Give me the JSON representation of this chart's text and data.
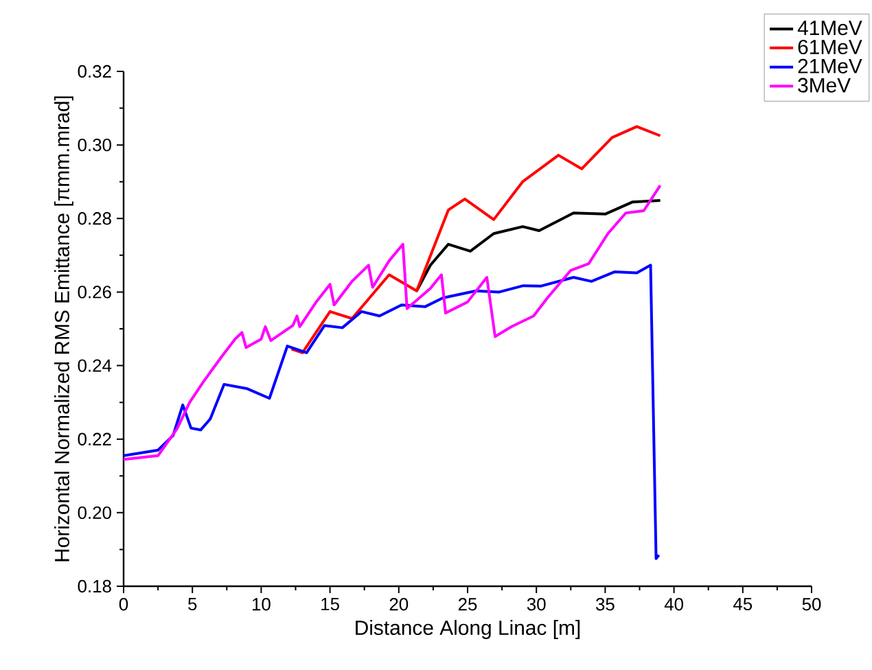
{
  "chart_data": {
    "type": "line",
    "xlabel": "Distance Along Linac [m]",
    "ylabel": "Horizontal Normalized RMS Emittance [πmm.mrad]",
    "xlim": [
      0,
      50
    ],
    "ylim": [
      0.18,
      0.32
    ],
    "xticks": [
      0,
      5,
      10,
      15,
      20,
      25,
      30,
      35,
      40,
      45,
      50
    ],
    "yticks": [
      0.18,
      {
        "value": 0.2,
        "label": "0.20"
      },
      0.22,
      0.24,
      0.26,
      0.28,
      {
        "value": 0.3,
        "label": "0.30"
      },
      0.32
    ],
    "legend": "top right",
    "grid": false,
    "marker": "none",
    "line_style": "solid",
    "series": [
      {
        "name": "41MeV",
        "color": "#000000",
        "x": [
          21.3,
          22.3,
          23.6,
          25.2,
          26.9,
          29.0,
          30.2,
          32.7,
          35.0,
          37.0,
          39.0
        ],
        "values": [
          0.2603,
          0.2673,
          0.273,
          0.2711,
          0.2759,
          0.2778,
          0.2767,
          0.2815,
          0.2812,
          0.2845,
          0.2849
        ]
      },
      {
        "name": "61MeV",
        "color": "#ff0000",
        "x": [
          12.2,
          13.0,
          15.0,
          16.6,
          19.3,
          21.3,
          23.6,
          24.8,
          26.9,
          29.0,
          31.6,
          33.3,
          35.5,
          37.3,
          39.0
        ],
        "values": [
          0.2445,
          0.2435,
          0.2547,
          0.2528,
          0.2647,
          0.2603,
          0.2823,
          0.2853,
          0.2797,
          0.29,
          0.2972,
          0.2935,
          0.302,
          0.305,
          0.3025
        ]
      },
      {
        "name": "21MeV",
        "color": "#0000ff",
        "x": [
          0,
          2.5,
          3.6,
          4.3,
          4.9,
          5.6,
          6.3,
          7.3,
          9.0,
          10.6,
          11.9,
          13.3,
          14.6,
          15.9,
          17.3,
          18.6,
          20.2,
          21.9,
          23.2,
          25.6,
          27.3,
          29.0,
          30.3,
          32.7,
          34.0,
          35.7,
          37.3,
          38.3,
          38.7,
          38.9
        ],
        "values": [
          0.2155,
          0.217,
          0.221,
          0.2293,
          0.223,
          0.2225,
          0.2255,
          0.2349,
          0.2337,
          0.2311,
          0.2453,
          0.2435,
          0.2509,
          0.2503,
          0.2547,
          0.2535,
          0.2565,
          0.256,
          0.2584,
          0.2603,
          0.26,
          0.2617,
          0.2616,
          0.264,
          0.2629,
          0.2655,
          0.2652,
          0.2673,
          0.1875,
          0.1885
        ]
      },
      {
        "name": "3MeV",
        "color": "#ff00ff",
        "x": [
          0,
          2.5,
          3.9,
          4.8,
          5.8,
          7.1,
          8.1,
          8.6,
          8.9,
          10.0,
          10.3,
          10.7,
          12.3,
          12.6,
          12.8,
          14.0,
          15.0,
          15.3,
          16.6,
          17.8,
          18.1,
          19.3,
          20.3,
          20.6,
          22.3,
          23.1,
          23.4,
          25.0,
          26.4,
          27.0,
          28.2,
          29.8,
          30.8,
          32.5,
          33.8,
          35.2,
          36.5,
          37.8,
          39.0
        ],
        "values": [
          0.2145,
          0.2155,
          0.2229,
          0.23,
          0.2356,
          0.2423,
          0.2472,
          0.249,
          0.2449,
          0.2472,
          0.2506,
          0.2468,
          0.2509,
          0.2535,
          0.2506,
          0.2573,
          0.2621,
          0.2565,
          0.2629,
          0.2673,
          0.2613,
          0.2685,
          0.273,
          0.2555,
          0.261,
          0.2647,
          0.2543,
          0.2573,
          0.264,
          0.2479,
          0.2506,
          0.2535,
          0.2584,
          0.2659,
          0.2677,
          0.2759,
          0.2815,
          0.2821,
          0.289
        ]
      }
    ]
  }
}
